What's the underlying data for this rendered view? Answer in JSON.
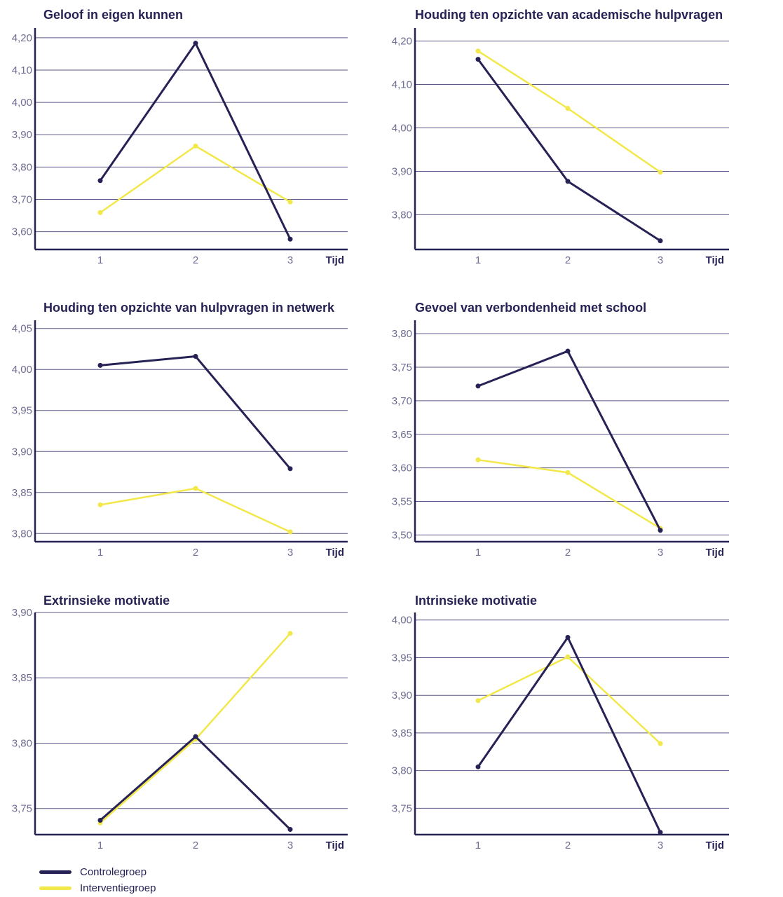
{
  "colors": {
    "control": "#262255",
    "intervention": "#f2e84a",
    "grid": "#5b5887",
    "axis": "#262255",
    "title": "#262255",
    "tick": "#6f6d93"
  },
  "legend": {
    "control_label": "Controlegroep",
    "intervention_label": "Interventiegroep"
  },
  "chart_data": [
    {
      "type": "line",
      "title": "Geloof in eigen kunnen",
      "xlabel": "Tijd",
      "ylabel": "",
      "categories": [
        "1",
        "2",
        "3"
      ],
      "yticks": [
        "3,60",
        "3,70",
        "3,80",
        "3,90",
        "4,00",
        "4,10",
        "4,20"
      ],
      "ylim": [
        3.545,
        4.23
      ],
      "series": [
        {
          "name": "Controlegroep",
          "key": "control",
          "values": [
            3.758,
            4.183,
            3.577
          ]
        },
        {
          "name": "Interventiegroep",
          "key": "intervention",
          "values": [
            3.659,
            3.865,
            3.692
          ]
        }
      ]
    },
    {
      "type": "line",
      "title": "Houding ten opzichte van academische hulpvragen",
      "xlabel": "Tijd",
      "ylabel": "",
      "categories": [
        "1",
        "2",
        "3"
      ],
      "yticks": [
        "3,80",
        "3,90",
        "4,00",
        "4,10",
        "4,20"
      ],
      "ylim": [
        3.72,
        4.23
      ],
      "series": [
        {
          "name": "Controlegroep",
          "key": "control",
          "values": [
            4.158,
            3.877,
            3.74
          ]
        },
        {
          "name": "Interventiegroep",
          "key": "intervention",
          "values": [
            4.177,
            4.045,
            3.898
          ]
        }
      ]
    },
    {
      "type": "line",
      "title": "Houding ten opzichte van hulpvragen in netwerk",
      "xlabel": "Tijd",
      "ylabel": "",
      "categories": [
        "1",
        "2",
        "3"
      ],
      "yticks": [
        "3,80",
        "3,85",
        "3,90",
        "3,95",
        "4,00",
        "4,05"
      ],
      "ylim": [
        3.79,
        4.06
      ],
      "series": [
        {
          "name": "Controlegroep",
          "key": "control",
          "values": [
            4.005,
            4.016,
            3.879
          ]
        },
        {
          "name": "Interventiegroep",
          "key": "intervention",
          "values": [
            3.835,
            3.855,
            3.802
          ]
        }
      ]
    },
    {
      "type": "line",
      "title": "Gevoel van verbondenheid met school",
      "xlabel": "Tijd",
      "ylabel": "",
      "categories": [
        "1",
        "2",
        "3"
      ],
      "yticks": [
        "3,50",
        "3,55",
        "3,60",
        "3,65",
        "3,70",
        "3,75",
        "3,80"
      ],
      "ylim": [
        3.49,
        3.82
      ],
      "series": [
        {
          "name": "Controlegroep",
          "key": "control",
          "values": [
            3.722,
            3.774,
            3.507
          ]
        },
        {
          "name": "Interventiegroep",
          "key": "intervention",
          "values": [
            3.612,
            3.593,
            3.51
          ]
        }
      ]
    },
    {
      "type": "line",
      "title": "Extrinsieke motivatie",
      "xlabel": "Tijd",
      "ylabel": "",
      "categories": [
        "1",
        "2",
        "3"
      ],
      "yticks": [
        "3,75",
        "3,80",
        "3,85",
        "3,90"
      ],
      "ylim": [
        3.73,
        3.9
      ],
      "series": [
        {
          "name": "Controlegroep",
          "key": "control",
          "values": [
            3.741,
            3.805,
            3.734
          ]
        },
        {
          "name": "Interventiegroep",
          "key": "intervention",
          "values": [
            3.739,
            3.803,
            3.884
          ]
        }
      ]
    },
    {
      "type": "line",
      "title": "Intrinsieke motivatie",
      "xlabel": "Tijd",
      "ylabel": "",
      "categories": [
        "1",
        "2",
        "3"
      ],
      "yticks": [
        "3,75",
        "3,80",
        "3,85",
        "3,90",
        "3,95",
        "4,00"
      ],
      "ylim": [
        3.715,
        4.01
      ],
      "series": [
        {
          "name": "Controlegroep",
          "key": "control",
          "values": [
            3.805,
            3.977,
            3.718
          ]
        },
        {
          "name": "Interventiegroep",
          "key": "intervention",
          "values": [
            3.893,
            3.951,
            3.836
          ]
        }
      ]
    }
  ]
}
